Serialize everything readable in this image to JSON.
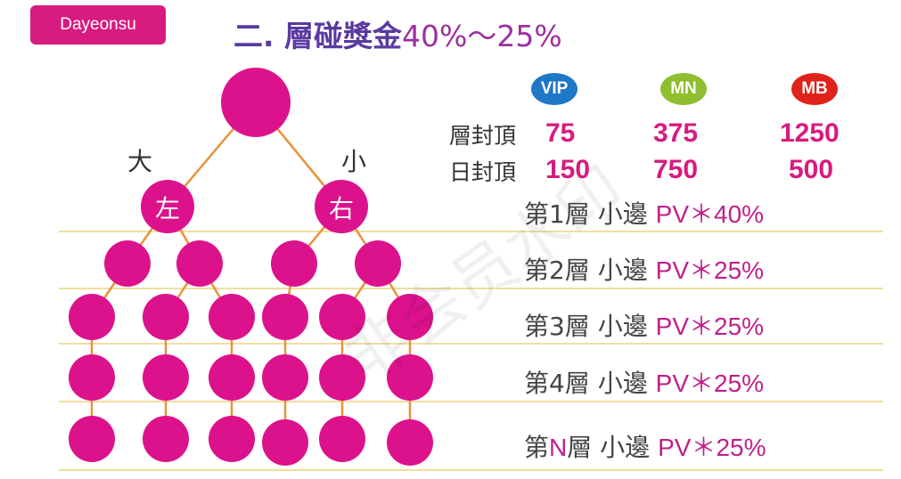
{
  "logo": "Dayeonsu",
  "title": {
    "text": "二. 層碰獎金",
    "percent": "40%～25%"
  },
  "labels": {
    "big": "大",
    "small": "小",
    "left": "左",
    "right": "右"
  },
  "watermark": "非会员水印",
  "badges": [
    {
      "label": "VIP",
      "color": "#1f77c8"
    },
    {
      "label": "MN",
      "color": "#8fbe2f"
    },
    {
      "label": "MB",
      "color": "#e0221a"
    }
  ],
  "caps": [
    {
      "label": "層封頂",
      "values": [
        "75",
        "375",
        "1250"
      ]
    },
    {
      "label": "日封頂",
      "values": [
        "150",
        "750",
        "500"
      ]
    }
  ],
  "levels": [
    {
      "prefix": "第1層",
      "side": "小邊",
      "pv": "PV＊40%"
    },
    {
      "prefix": "第2層",
      "side": "小邊",
      "pv": "PV＊25%"
    },
    {
      "prefix": "第3層",
      "side": "小邊",
      "pv": "PV＊25%"
    },
    {
      "prefix": "第4層",
      "side": "小邊",
      "pv": "PV＊25%"
    },
    {
      "prefix_a": "第",
      "prefix_n": "N",
      "prefix_b": "層",
      "side": "小邊",
      "pv": "PV＊25%"
    }
  ],
  "colors": {
    "node": "#dc128c",
    "line": "#e8923a",
    "rule": "#f3dd9e"
  }
}
